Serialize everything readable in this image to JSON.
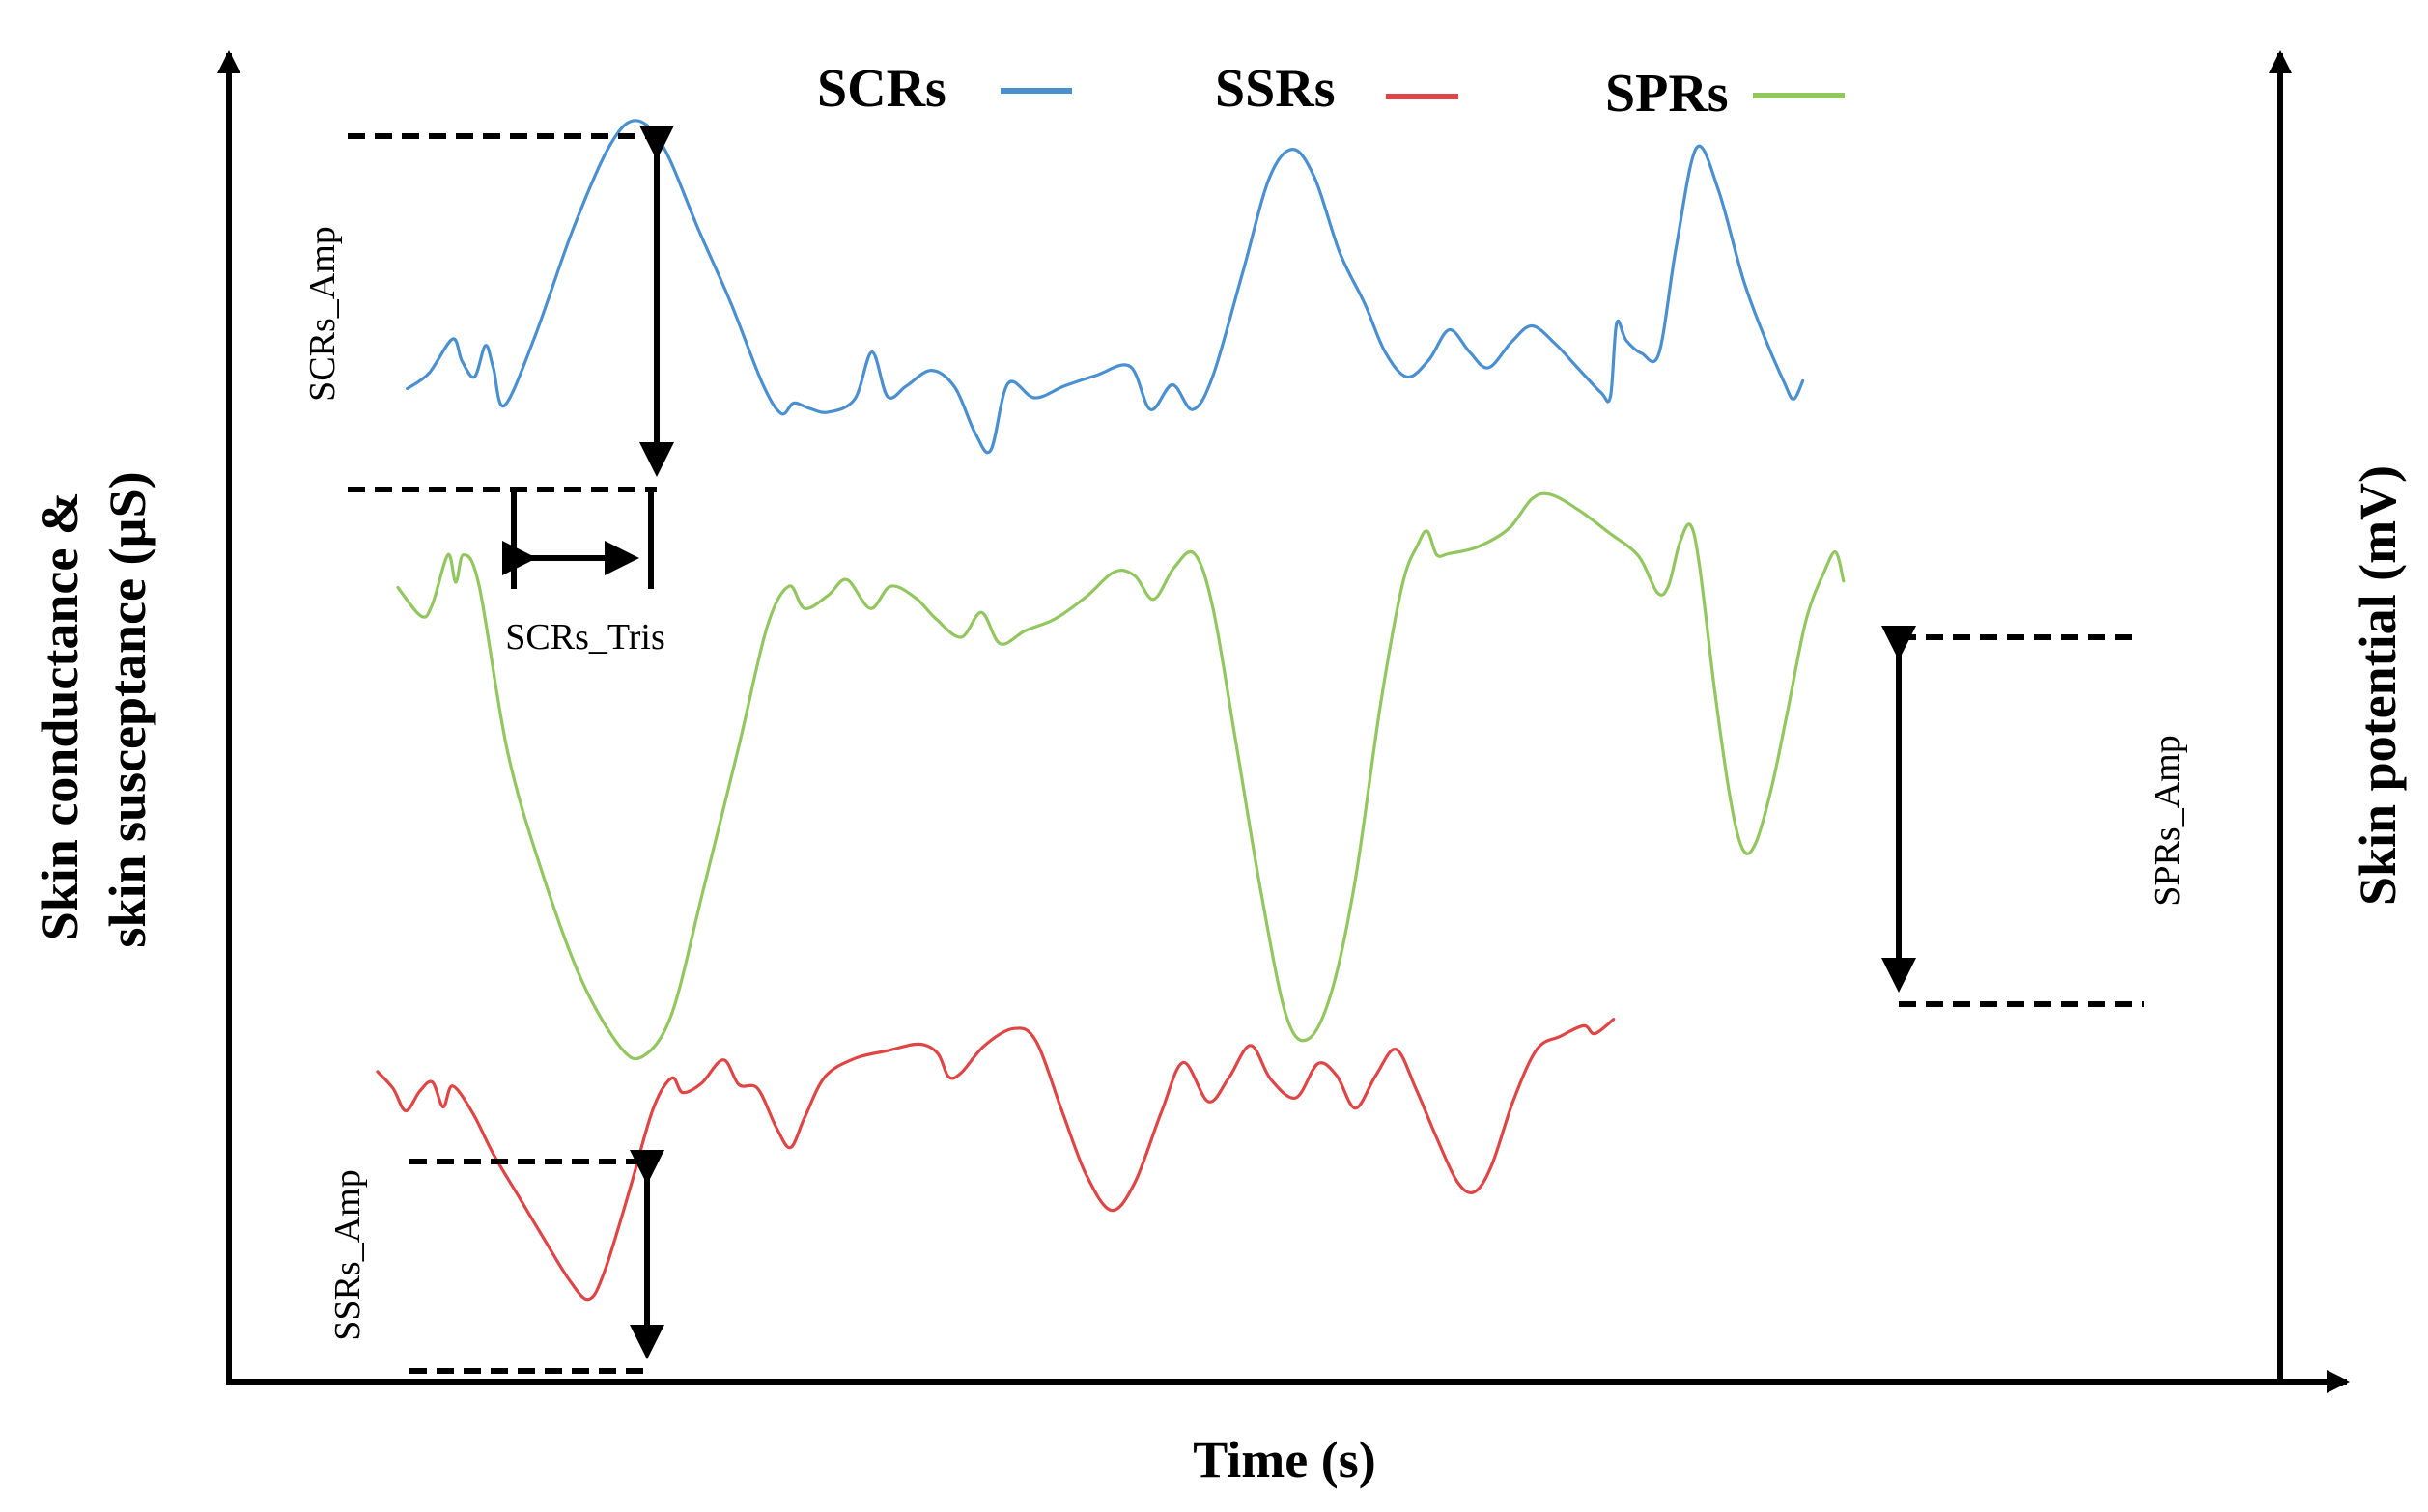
{
  "chart_data": {
    "type": "line",
    "title": "",
    "xlabel": "Time (s)",
    "ylabel_left": "Skin conductance & skin susceptance (µS)",
    "ylabel_left_lines": [
      "Skin conductance &",
      "skin susceptance (µS)"
    ],
    "ylabel_right": "Skin potential (mV)",
    "xlim": [
      0,
      100
    ],
    "ylim": [
      0,
      100
    ],
    "legend_position": "top-center",
    "series": [
      {
        "name": "SCRs",
        "color": "#4a90d0",
        "points": [
          [
            11.4,
            75.9
          ],
          [
            12.8,
            77.1
          ],
          [
            14.3,
            79.7
          ],
          [
            14.9,
            78.0
          ],
          [
            15.7,
            76.8
          ],
          [
            16.4,
            79.2
          ],
          [
            16.9,
            77.5
          ],
          [
            17.6,
            74.6
          ],
          [
            19.5,
            79.7
          ],
          [
            22.0,
            88.1
          ],
          [
            24.3,
            94.4
          ],
          [
            26.0,
            96.4
          ],
          [
            27.8,
            94.3
          ],
          [
            30.0,
            88.1
          ],
          [
            32.1,
            82.4
          ],
          [
            34.1,
            76.3
          ],
          [
            35.3,
            74.0
          ],
          [
            36.1,
            74.8
          ],
          [
            37.1,
            74.4
          ],
          [
            38.3,
            74.1
          ],
          [
            40.0,
            75.1
          ],
          [
            41.1,
            78.7
          ],
          [
            42.1,
            75.3
          ],
          [
            43.3,
            76.1
          ],
          [
            44.9,
            77.3
          ],
          [
            46.4,
            76.0
          ],
          [
            47.7,
            72.5
          ],
          [
            48.7,
            71.2
          ],
          [
            49.8,
            76.3
          ],
          [
            51.5,
            75.2
          ],
          [
            53.4,
            76.1
          ],
          [
            55.4,
            76.9
          ],
          [
            57.6,
            77.6
          ],
          [
            58.9,
            74.3
          ],
          [
            60.3,
            76.2
          ],
          [
            61.6,
            74.3
          ],
          [
            62.9,
            76.9
          ],
          [
            64.8,
            84.8
          ],
          [
            66.5,
            92.0
          ],
          [
            68.0,
            94.2
          ],
          [
            69.4,
            92.0
          ],
          [
            71.0,
            86.3
          ],
          [
            72.6,
            82.4
          ],
          [
            73.9,
            78.7
          ],
          [
            75.3,
            76.8
          ],
          [
            76.7,
            78.1
          ],
          [
            78.0,
            80.4
          ],
          [
            79.3,
            78.7
          ],
          [
            80.5,
            77.5
          ],
          [
            82.0,
            79.5
          ],
          [
            83.3,
            80.7
          ],
          [
            84.8,
            79.3
          ],
          [
            86.2,
            77.5
          ],
          [
            87.7,
            75.6
          ],
          [
            88.3,
            75.3
          ],
          [
            88.7,
            80.9
          ],
          [
            89.3,
            79.6
          ],
          [
            90.3,
            78.6
          ],
          [
            91.4,
            78.6
          ],
          [
            92.5,
            86.7
          ],
          [
            93.8,
            94.3
          ],
          [
            95.2,
            91.1
          ],
          [
            96.8,
            84.2
          ],
          [
            98.2,
            79.7
          ],
          [
            99.4,
            76.4
          ],
          [
            100.0,
            75.1
          ],
          [
            100.6,
            76.5
          ]
        ]
      },
      {
        "name": "SPRs",
        "color": "#92c65e",
        "points": [
          [
            10.8,
            60.7
          ],
          [
            12.3,
            58.5
          ],
          [
            13.0,
            59.4
          ],
          [
            14.0,
            63.2
          ],
          [
            14.5,
            61.1
          ],
          [
            15.0,
            63.2
          ],
          [
            16.0,
            60.8
          ],
          [
            17.8,
            48.2
          ],
          [
            20.0,
            39.0
          ],
          [
            22.5,
            30.8
          ],
          [
            25.0,
            25.6
          ],
          [
            26.5,
            24.9
          ],
          [
            28.3,
            28.1
          ],
          [
            30.3,
            37.5
          ],
          [
            32.6,
            48.6
          ],
          [
            34.4,
            57.7
          ],
          [
            35.8,
            60.8
          ],
          [
            36.8,
            59.1
          ],
          [
            38.3,
            60.1
          ],
          [
            39.5,
            61.3
          ],
          [
            41.0,
            59.1
          ],
          [
            42.3,
            60.8
          ],
          [
            43.9,
            59.9
          ],
          [
            45.2,
            58.3
          ],
          [
            46.8,
            56.9
          ],
          [
            48.1,
            58.8
          ],
          [
            49.3,
            56.4
          ],
          [
            50.9,
            57.4
          ],
          [
            52.8,
            58.3
          ],
          [
            54.8,
            60.0
          ],
          [
            56.6,
            61.9
          ],
          [
            57.9,
            61.6
          ],
          [
            59.1,
            59.8
          ],
          [
            60.4,
            62.2
          ],
          [
            61.7,
            63.3
          ],
          [
            62.9,
            59.1
          ],
          [
            64.4,
            48.6
          ],
          [
            66.0,
            37.2
          ],
          [
            67.6,
            27.9
          ],
          [
            69.0,
            26.2
          ],
          [
            70.5,
            29.9
          ],
          [
            72.0,
            38.4
          ],
          [
            73.6,
            51.7
          ],
          [
            75.0,
            60.9
          ],
          [
            76.0,
            64.0
          ],
          [
            76.6,
            65.0
          ],
          [
            77.2,
            63.2
          ],
          [
            78.0,
            63.3
          ],
          [
            79.8,
            63.8
          ],
          [
            81.8,
            65.2
          ],
          [
            83.3,
            67.5
          ],
          [
            84.5,
            67.8
          ],
          [
            86.3,
            66.6
          ],
          [
            88.2,
            64.9
          ],
          [
            90.1,
            63.1
          ],
          [
            91.3,
            60.3
          ],
          [
            92.0,
            60.8
          ],
          [
            92.7,
            64.0
          ],
          [
            93.4,
            65.5
          ],
          [
            94.0,
            62.3
          ],
          [
            95.0,
            52.5
          ],
          [
            96.0,
            44.3
          ],
          [
            96.8,
            40.6
          ],
          [
            97.6,
            41.2
          ],
          [
            98.6,
            45.4
          ],
          [
            99.6,
            51.1
          ],
          [
            100.8,
            58.2
          ],
          [
            102.0,
            62.0
          ],
          [
            102.7,
            63.4
          ],
          [
            103.2,
            61.2
          ]
        ]
      },
      {
        "name": "SSRs",
        "color": "#e04545",
        "points": [
          [
            9.5,
            23.7
          ],
          [
            10.5,
            22.4
          ],
          [
            11.3,
            20.7
          ],
          [
            12.2,
            22.2
          ],
          [
            13.0,
            22.9
          ],
          [
            13.7,
            21.0
          ],
          [
            14.3,
            22.6
          ],
          [
            15.6,
            20.5
          ],
          [
            16.9,
            17.4
          ],
          [
            18.5,
            14.2
          ],
          [
            20.2,
            10.8
          ],
          [
            21.8,
            7.7
          ],
          [
            23.0,
            6.3
          ],
          [
            24.0,
            8.4
          ],
          [
            25.6,
            14.6
          ],
          [
            27.1,
            20.8
          ],
          [
            28.3,
            23.2
          ],
          [
            29.0,
            22.1
          ],
          [
            30.2,
            22.8
          ],
          [
            31.6,
            24.6
          ],
          [
            32.6,
            22.7
          ],
          [
            33.8,
            22.4
          ],
          [
            35.0,
            19.4
          ],
          [
            35.9,
            17.9
          ],
          [
            36.8,
            20.2
          ],
          [
            38.1,
            23.3
          ],
          [
            40.0,
            24.7
          ],
          [
            42.1,
            25.3
          ],
          [
            44.1,
            25.8
          ],
          [
            45.3,
            25.1
          ],
          [
            46.0,
            23.3
          ],
          [
            46.8,
            23.6
          ],
          [
            48.3,
            25.7
          ],
          [
            50.2,
            27.0
          ],
          [
            51.6,
            26.0
          ],
          [
            53.3,
            20.5
          ],
          [
            54.8,
            15.8
          ],
          [
            56.4,
            13.1
          ],
          [
            57.9,
            15.2
          ],
          [
            59.6,
            20.6
          ],
          [
            61.0,
            24.4
          ],
          [
            62.6,
            21.4
          ],
          [
            63.9,
            23.2
          ],
          [
            65.3,
            25.7
          ],
          [
            66.6,
            23.1
          ],
          [
            68.2,
            21.7
          ],
          [
            69.6,
            24.3
          ],
          [
            70.8,
            23.4
          ],
          [
            72.0,
            20.9
          ],
          [
            73.3,
            23.4
          ],
          [
            74.6,
            25.4
          ],
          [
            75.9,
            22.3
          ],
          [
            77.1,
            18.9
          ],
          [
            78.5,
            15.3
          ],
          [
            79.6,
            14.5
          ],
          [
            80.7,
            16.5
          ],
          [
            82.1,
            21.5
          ],
          [
            83.6,
            25.4
          ],
          [
            85.1,
            26.4
          ],
          [
            86.6,
            27.2
          ],
          [
            87.3,
            26.6
          ],
          [
            88.5,
            27.7
          ]
        ]
      }
    ],
    "annotations": [
      "SCRs_Amp",
      "SCRs_Tris",
      "SPRs_Amp",
      "SSRs_Amp"
    ]
  }
}
